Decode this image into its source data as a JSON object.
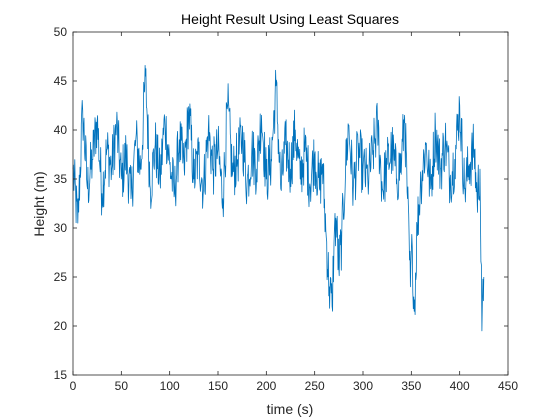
{
  "chart_data": {
    "type": "line",
    "title": "Height Result Using Least Squares",
    "xlabel": "time (s)",
    "ylabel": "Height (m)",
    "xlim": [
      0,
      450
    ],
    "ylim": [
      15,
      50
    ],
    "xticks": [
      0,
      50,
      100,
      150,
      200,
      250,
      300,
      350,
      400,
      450
    ],
    "yticks": [
      15,
      20,
      25,
      30,
      35,
      40,
      45,
      50
    ],
    "grid": false,
    "line_color": "#0072BD",
    "series": [
      {
        "x": [
          0,
          5,
          10,
          15,
          20,
          25,
          30,
          35,
          40,
          45,
          50,
          55,
          60,
          65,
          70,
          75,
          80,
          85,
          90,
          95,
          100,
          105,
          110,
          115,
          120,
          125,
          130,
          135,
          140,
          145,
          150,
          155,
          160,
          165,
          170,
          175,
          180,
          185,
          190,
          195,
          200,
          205,
          210,
          215,
          220,
          225,
          230,
          235,
          240,
          245,
          250,
          255,
          258,
          262,
          265,
          268,
          270,
          272,
          275,
          278,
          282,
          285,
          290,
          295,
          300,
          305,
          310,
          315,
          320,
          325,
          330,
          335,
          340,
          343,
          346,
          349,
          351,
          353,
          356,
          360,
          365,
          370,
          375,
          380,
          385,
          390,
          395,
          400,
          405,
          410,
          415,
          418,
          421,
          423,
          425
        ],
        "values": [
          36,
          30.5,
          42,
          34,
          37,
          41,
          33.5,
          38,
          36,
          40.5,
          35,
          37.5,
          33,
          39,
          36,
          45.5,
          34,
          38.5,
          35,
          41,
          36.5,
          33.5,
          39,
          36,
          42,
          35,
          37.5,
          34,
          40,
          36,
          38,
          33,
          42.5,
          35.5,
          37,
          39.5,
          34.5,
          38,
          36,
          41.5,
          35,
          37,
          44.5,
          34,
          38.5,
          36,
          40,
          35,
          38,
          34.5,
          37.5,
          34,
          36.5,
          29,
          24,
          22,
          28.5,
          31,
          26,
          29,
          36,
          40.5,
          34,
          38,
          36,
          35,
          37.5,
          40.5,
          34,
          36.5,
          38,
          35,
          37,
          41.5,
          33,
          24,
          28,
          21.5,
          30,
          35,
          38.5,
          34,
          40,
          36,
          39,
          35,
          37,
          42.5,
          34,
          36.5,
          38,
          33,
          36,
          19.5,
          25
        ]
      }
    ]
  }
}
